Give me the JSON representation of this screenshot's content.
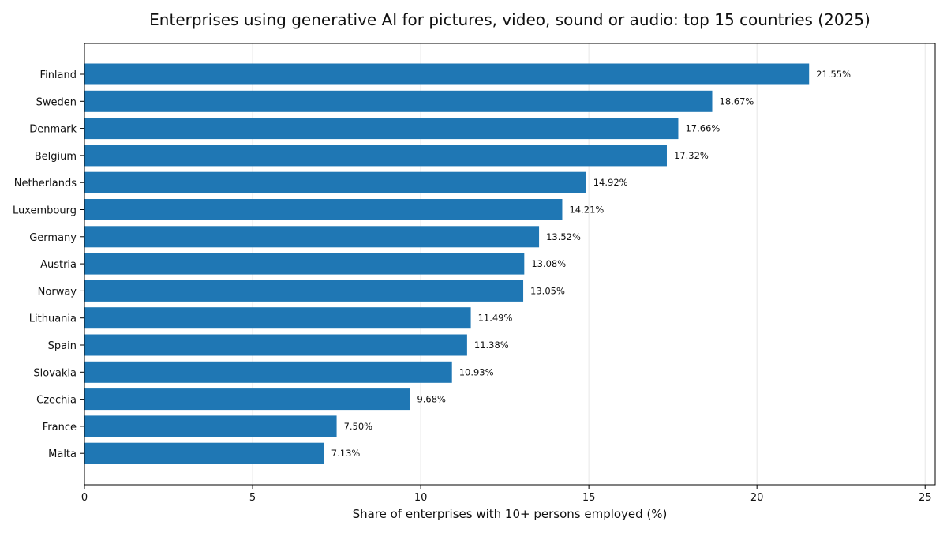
{
  "chart_data": {
    "type": "bar",
    "orientation": "horizontal",
    "title": "Enterprises using generative AI for pictures, video, sound or audio: top 15 countries (2025)",
    "xlabel": "Share of enterprises with 10+ persons employed (%)",
    "ylabel": "",
    "xlim": [
      0,
      25.3
    ],
    "xticks": [
      0,
      5,
      10,
      15,
      20,
      25
    ],
    "grid": "x",
    "bar_color": "#1f77b4",
    "categories": [
      "Finland",
      "Sweden",
      "Denmark",
      "Belgium",
      "Netherlands",
      "Luxembourg",
      "Germany",
      "Austria",
      "Norway",
      "Lithuania",
      "Spain",
      "Slovakia",
      "Czechia",
      "France",
      "Malta"
    ],
    "values": [
      21.55,
      18.67,
      17.66,
      17.32,
      14.92,
      14.21,
      13.52,
      13.08,
      13.05,
      11.49,
      11.38,
      10.93,
      9.68,
      7.5,
      7.13
    ],
    "data_labels": [
      "21.55%",
      "18.67%",
      "17.66%",
      "17.32%",
      "14.92%",
      "14.21%",
      "13.52%",
      "13.08%",
      "13.05%",
      "11.49%",
      "11.38%",
      "10.93%",
      "9.68%",
      "7.50%",
      "7.13%"
    ]
  }
}
